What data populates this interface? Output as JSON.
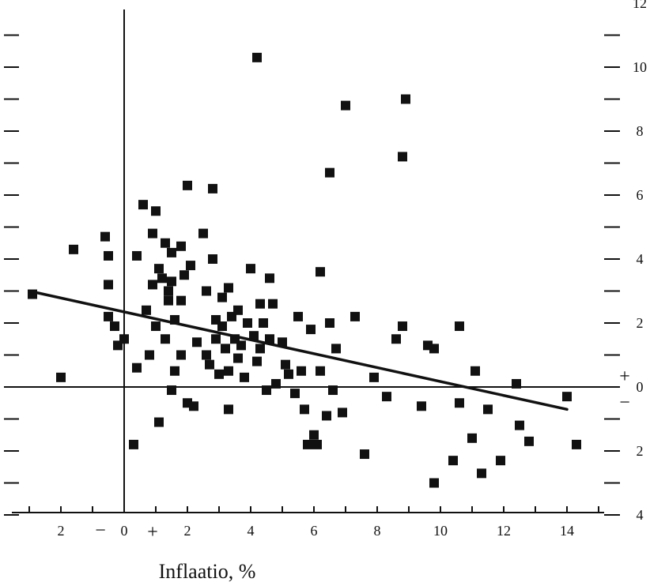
{
  "chart_data": {
    "type": "scatter",
    "title": "",
    "xlabel": "Inflaatio, %",
    "ylabel": "",
    "xlim": [
      -3,
      15
    ],
    "ylim": [
      -4,
      12
    ],
    "x_tick_labels": [
      {
        "value": -2,
        "label": "2"
      },
      {
        "value": 0,
        "label": "0"
      },
      {
        "value": 2,
        "label": "2"
      },
      {
        "value": 4,
        "label": "4"
      },
      {
        "value": 6,
        "label": "6"
      },
      {
        "value": 8,
        "label": "8"
      },
      {
        "value": 10,
        "label": "10"
      },
      {
        "value": 12,
        "label": "12"
      },
      {
        "value": 14,
        "label": "14"
      }
    ],
    "y_tick_labels": [
      {
        "value": 12,
        "label": "12"
      },
      {
        "value": 10,
        "label": "10"
      },
      {
        "value": 8,
        "label": "8"
      },
      {
        "value": 6,
        "label": "6"
      },
      {
        "value": 4,
        "label": "4"
      },
      {
        "value": 2,
        "label": "2"
      },
      {
        "value": 0,
        "label": "0"
      },
      {
        "value": -2,
        "label": "2"
      },
      {
        "value": -4,
        "label": "4"
      }
    ],
    "x_sign_labels": {
      "negative": "−",
      "positive": "+"
    },
    "y_sign_labels": {
      "positive": "+",
      "negative": "−"
    },
    "grid": false,
    "trend_line": {
      "x": [
        -3,
        14
      ],
      "y": [
        3.0,
        -0.7
      ]
    },
    "points": [
      [
        -2.9,
        2.9
      ],
      [
        -2.0,
        0.3
      ],
      [
        -1.6,
        4.3
      ],
      [
        -0.6,
        4.7
      ],
      [
        -0.5,
        4.1
      ],
      [
        -0.5,
        3.2
      ],
      [
        -0.5,
        2.2
      ],
      [
        -0.3,
        1.9
      ],
      [
        -0.2,
        1.3
      ],
      [
        0.0,
        1.5
      ],
      [
        0.3,
        -1.8
      ],
      [
        0.4,
        0.6
      ],
      [
        0.4,
        4.1
      ],
      [
        0.6,
        5.7
      ],
      [
        0.7,
        2.4
      ],
      [
        0.8,
        1.0
      ],
      [
        0.9,
        3.2
      ],
      [
        0.9,
        4.8
      ],
      [
        1.0,
        5.5
      ],
      [
        1.0,
        1.9
      ],
      [
        1.1,
        3.7
      ],
      [
        1.1,
        -1.1
      ],
      [
        1.2,
        3.4
      ],
      [
        1.3,
        4.5
      ],
      [
        1.3,
        1.5
      ],
      [
        1.4,
        3.0
      ],
      [
        1.4,
        2.7
      ],
      [
        1.5,
        4.2
      ],
      [
        1.5,
        3.3
      ],
      [
        1.5,
        -0.1
      ],
      [
        1.6,
        2.1
      ],
      [
        1.6,
        0.5
      ],
      [
        1.8,
        4.4
      ],
      [
        1.8,
        2.7
      ],
      [
        1.8,
        1.0
      ],
      [
        1.9,
        3.5
      ],
      [
        2.0,
        -0.5
      ],
      [
        2.0,
        6.3
      ],
      [
        2.1,
        3.8
      ],
      [
        2.2,
        -0.6
      ],
      [
        2.3,
        1.4
      ],
      [
        2.5,
        4.8
      ],
      [
        2.6,
        3.0
      ],
      [
        2.6,
        1.0
      ],
      [
        2.7,
        0.7
      ],
      [
        2.8,
        4.0
      ],
      [
        2.8,
        6.2
      ],
      [
        2.9,
        2.1
      ],
      [
        2.9,
        1.5
      ],
      [
        3.0,
        0.4
      ],
      [
        3.1,
        2.8
      ],
      [
        3.1,
        1.9
      ],
      [
        3.2,
        1.2
      ],
      [
        3.3,
        3.1
      ],
      [
        3.3,
        0.5
      ],
      [
        3.3,
        -0.7
      ],
      [
        3.4,
        2.2
      ],
      [
        3.5,
        1.5
      ],
      [
        3.6,
        2.4
      ],
      [
        3.6,
        0.9
      ],
      [
        3.7,
        1.3
      ],
      [
        3.8,
        0.3
      ],
      [
        3.9,
        2.0
      ],
      [
        4.0,
        3.7
      ],
      [
        4.1,
        1.6
      ],
      [
        4.2,
        0.8
      ],
      [
        4.2,
        10.3
      ],
      [
        4.3,
        2.6
      ],
      [
        4.3,
        1.2
      ],
      [
        4.4,
        2.0
      ],
      [
        4.5,
        -0.1
      ],
      [
        4.6,
        3.4
      ],
      [
        4.6,
        1.5
      ],
      [
        4.7,
        2.6
      ],
      [
        4.8,
        0.1
      ],
      [
        5.0,
        1.4
      ],
      [
        5.1,
        0.7
      ],
      [
        5.2,
        0.4
      ],
      [
        5.4,
        -0.2
      ],
      [
        5.5,
        2.2
      ],
      [
        5.6,
        0.5
      ],
      [
        5.7,
        -0.7
      ],
      [
        5.8,
        -1.8
      ],
      [
        5.9,
        1.8
      ],
      [
        6.0,
        -1.5
      ],
      [
        6.1,
        -1.8
      ],
      [
        6.2,
        0.5
      ],
      [
        6.2,
        3.6
      ],
      [
        6.4,
        -0.9
      ],
      [
        6.5,
        2.0
      ],
      [
        6.5,
        6.7
      ],
      [
        6.6,
        -0.1
      ],
      [
        6.7,
        1.2
      ],
      [
        6.9,
        -0.8
      ],
      [
        7.0,
        8.8
      ],
      [
        7.3,
        2.2
      ],
      [
        7.6,
        -2.1
      ],
      [
        7.9,
        0.3
      ],
      [
        8.3,
        -0.3
      ],
      [
        8.6,
        1.5
      ],
      [
        8.8,
        1.9
      ],
      [
        8.8,
        7.2
      ],
      [
        8.9,
        9.0
      ],
      [
        9.4,
        -0.6
      ],
      [
        9.6,
        1.3
      ],
      [
        9.8,
        1.2
      ],
      [
        9.8,
        -3.0
      ],
      [
        10.4,
        -2.3
      ],
      [
        10.6,
        1.9
      ],
      [
        10.6,
        -0.5
      ],
      [
        11.0,
        -1.6
      ],
      [
        11.1,
        0.5
      ],
      [
        11.3,
        -2.7
      ],
      [
        11.5,
        -0.7
      ],
      [
        11.9,
        -2.3
      ],
      [
        12.4,
        0.1
      ],
      [
        12.5,
        -1.2
      ],
      [
        12.8,
        -1.7
      ],
      [
        14.0,
        -0.3
      ],
      [
        14.3,
        -1.8
      ]
    ]
  }
}
